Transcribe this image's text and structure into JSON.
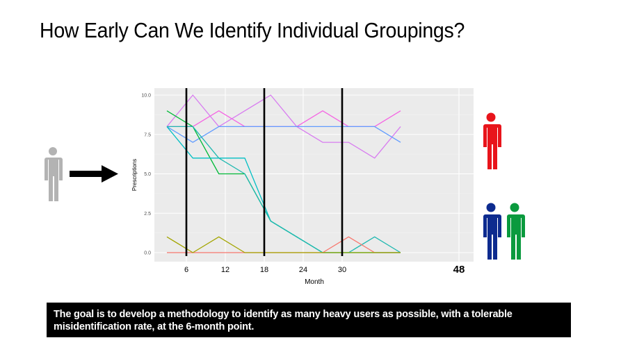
{
  "title": "How Early Can We Identify Individual Groupings?",
  "caption": "The goal is to develop a methodology to identify as many heavy users as possible, with a tolerable misidentification rate, at the 6-month point.",
  "icons": {
    "input_person": {
      "name": "person-icon",
      "color": "#b3b3b3"
    },
    "arrow": {
      "name": "right-arrow-icon",
      "color": "#000000"
    },
    "heavy_user": {
      "name": "person-icon",
      "color": "#e8141b"
    },
    "other_user_1": {
      "name": "person-icon",
      "color": "#0d2b8f"
    },
    "other_user_2": {
      "name": "person-icon",
      "color": "#0a9a3e"
    }
  },
  "chart_data": {
    "type": "line",
    "xlabel": "Month",
    "ylabel": "Prescriptions",
    "xlim": [
      3,
      48
    ],
    "ylim": [
      0,
      10
    ],
    "y_ticks": [
      "0.0",
      "2.5",
      "5.0",
      "7.5",
      "10.0"
    ],
    "y_tick_values": [
      0,
      2.5,
      5,
      7.5,
      10
    ],
    "x_ticks": [
      "6",
      "12",
      "18",
      "24",
      "30",
      "48"
    ],
    "x_tick_values": [
      6,
      12,
      18,
      24,
      30,
      48
    ],
    "vlines": [
      6,
      18,
      30
    ],
    "grid": true,
    "x": [
      3,
      7,
      11,
      15,
      19,
      23,
      27,
      31,
      35,
      39
    ],
    "series": [
      {
        "color": "#f564e3",
        "values": [
          8,
          8,
          9,
          8,
          8,
          8,
          9,
          8,
          8,
          9
        ]
      },
      {
        "color": "#d87cf0",
        "values": [
          8,
          10,
          8,
          9,
          10,
          8,
          7,
          7,
          6,
          8
        ]
      },
      {
        "color": "#619cff",
        "values": [
          8,
          7,
          8,
          8,
          8,
          8,
          8,
          8,
          8,
          7
        ]
      },
      {
        "color": "#00ba38",
        "values": [
          9,
          8,
          5,
          5,
          2,
          1,
          0,
          0,
          0,
          0
        ]
      },
      {
        "color": "#00bfc4",
        "values": [
          8,
          6,
          6,
          6,
          2,
          1,
          0,
          0,
          0,
          0
        ]
      },
      {
        "color": "#1fb8b0",
        "values": [
          8,
          8,
          6,
          5,
          2,
          1,
          0,
          0,
          1,
          0
        ]
      },
      {
        "color": "#f8766d",
        "values": [
          0,
          0,
          0,
          0,
          0,
          0,
          0,
          1,
          0,
          0
        ]
      },
      {
        "color": "#a3a500",
        "values": [
          1,
          0,
          1,
          0,
          0,
          0,
          0,
          0,
          0,
          0
        ]
      }
    ]
  }
}
